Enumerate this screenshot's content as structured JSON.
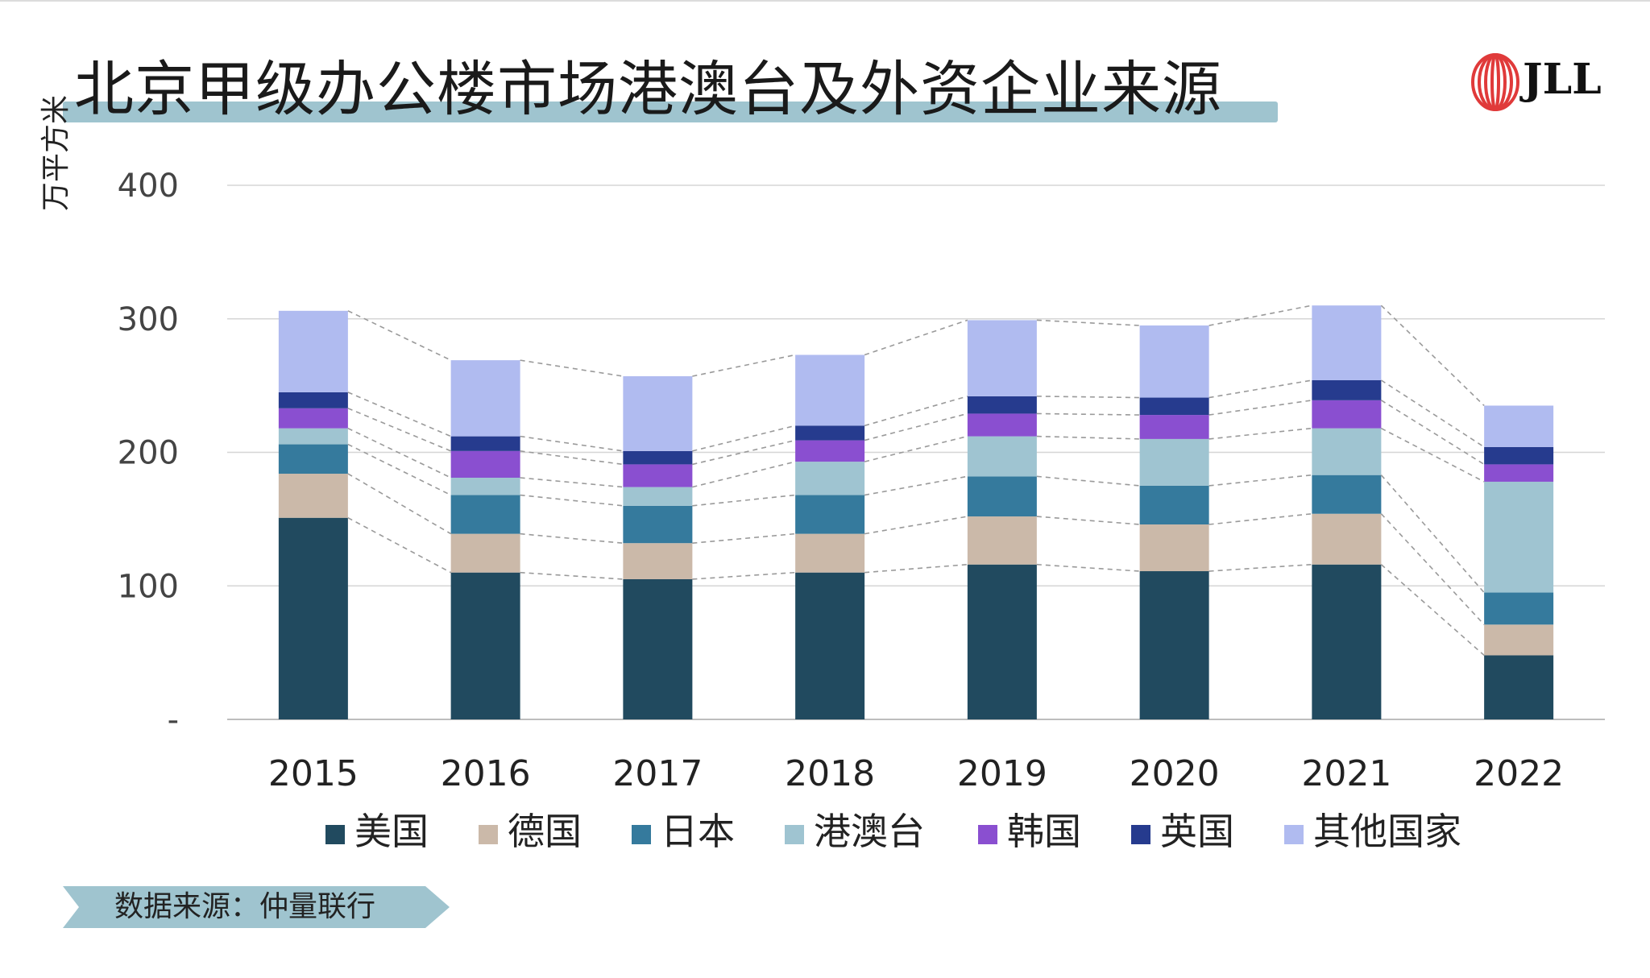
{
  "title": "北京甲级办公楼市场港澳台及外资企业来源",
  "logo": {
    "text": "JLL",
    "icon": "jll-logo-icon",
    "color": "#e03a3a"
  },
  "source": "数据来源：仲量联行",
  "chart_data": {
    "type": "bar",
    "stacked": true,
    "categories": [
      "2015",
      "2016",
      "2017",
      "2018",
      "2019",
      "2020",
      "2021",
      "2022"
    ],
    "ylabel": "万平方米",
    "ylim": [
      0,
      400
    ],
    "yticks": [
      0,
      100,
      200,
      300,
      400
    ],
    "ytick_labels": [
      "-",
      "100",
      "200",
      "300",
      "400"
    ],
    "grid": true,
    "legend_position": "bottom",
    "connector_lines": true,
    "series": [
      {
        "name": "美国",
        "color": "#214a5f",
        "values": [
          151,
          110,
          105,
          110,
          116,
          111,
          116,
          48
        ]
      },
      {
        "name": "德国",
        "color": "#cbb9a9",
        "values": [
          33,
          29,
          27,
          29,
          36,
          35,
          38,
          23
        ]
      },
      {
        "name": "日本",
        "color": "#357a9d",
        "values": [
          22,
          29,
          28,
          29,
          30,
          29,
          29,
          24
        ]
      },
      {
        "name": "港澳台",
        "color": "#9fc4d1",
        "values": [
          12,
          13,
          14,
          25,
          30,
          35,
          35,
          83
        ]
      },
      {
        "name": "韩国",
        "color": "#8a4fd0",
        "values": [
          15,
          20,
          17,
          16,
          17,
          18,
          21,
          13
        ]
      },
      {
        "name": "英国",
        "color": "#263b8e",
        "values": [
          12,
          11,
          10,
          11,
          13,
          13,
          15,
          13
        ]
      },
      {
        "name": "其他国家",
        "color": "#b0bbf0",
        "values": [
          61,
          57,
          56,
          53,
          57,
          54,
          56,
          31
        ]
      }
    ]
  }
}
